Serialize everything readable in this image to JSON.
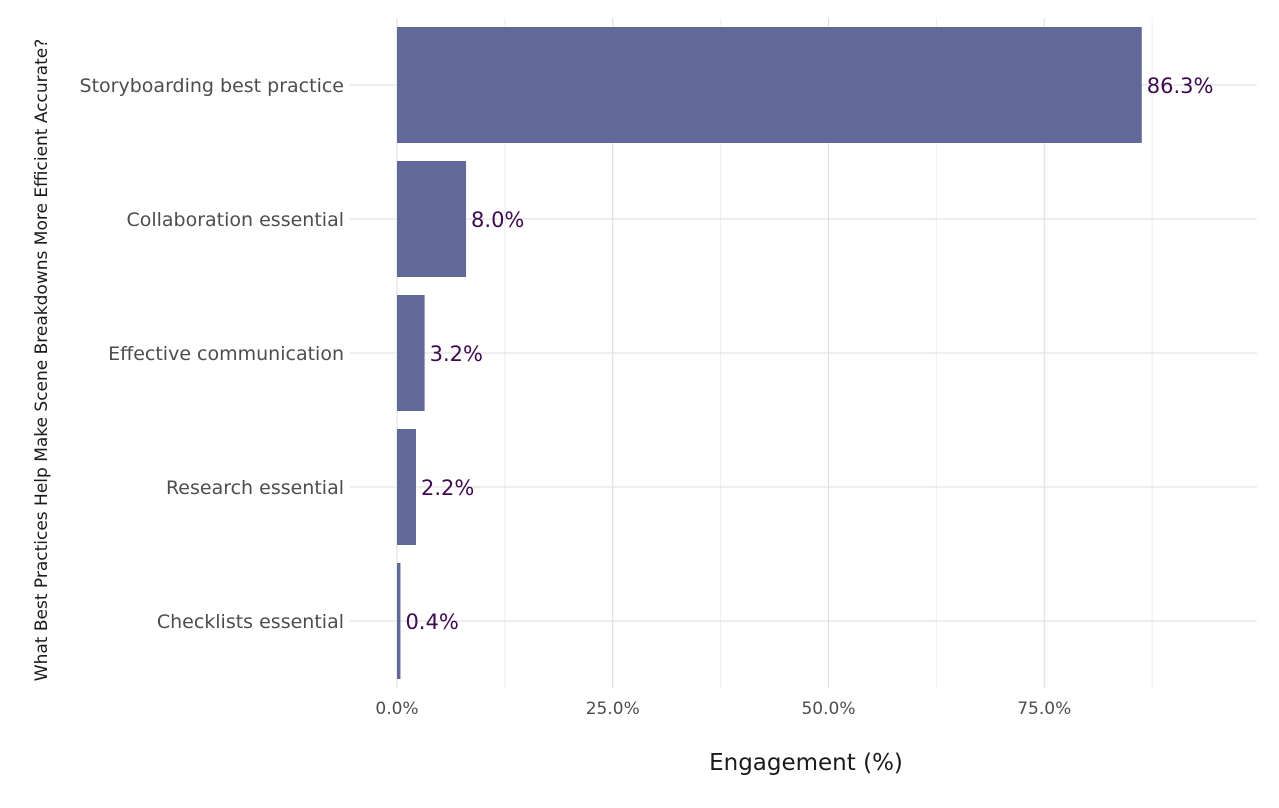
{
  "chart_data": {
    "type": "bar",
    "orientation": "horizontal",
    "categories": [
      "Storyboarding best practice",
      "Collaboration essential",
      "Effective communication",
      "Research essential",
      "Checklists essential"
    ],
    "values": [
      86.3,
      8.0,
      3.2,
      2.2,
      0.4
    ],
    "value_labels": [
      "86.3%",
      "8.0%",
      "3.2%",
      "2.2%",
      "0.4%"
    ],
    "xlabel": "Engagement (%)",
    "ylabel": "What Best Practices Help Make Scene Breakdowns More Efficient Accurate?",
    "xlim": [
      0,
      100
    ],
    "x_ticks": [
      0,
      25,
      50,
      75
    ],
    "x_tick_labels": [
      "0.0%",
      "25.0%",
      "50.0%",
      "75.0%"
    ],
    "grid": true,
    "legend": "none",
    "colors": {
      "bar": "#5f6696",
      "label": "#3e0a4e"
    }
  }
}
